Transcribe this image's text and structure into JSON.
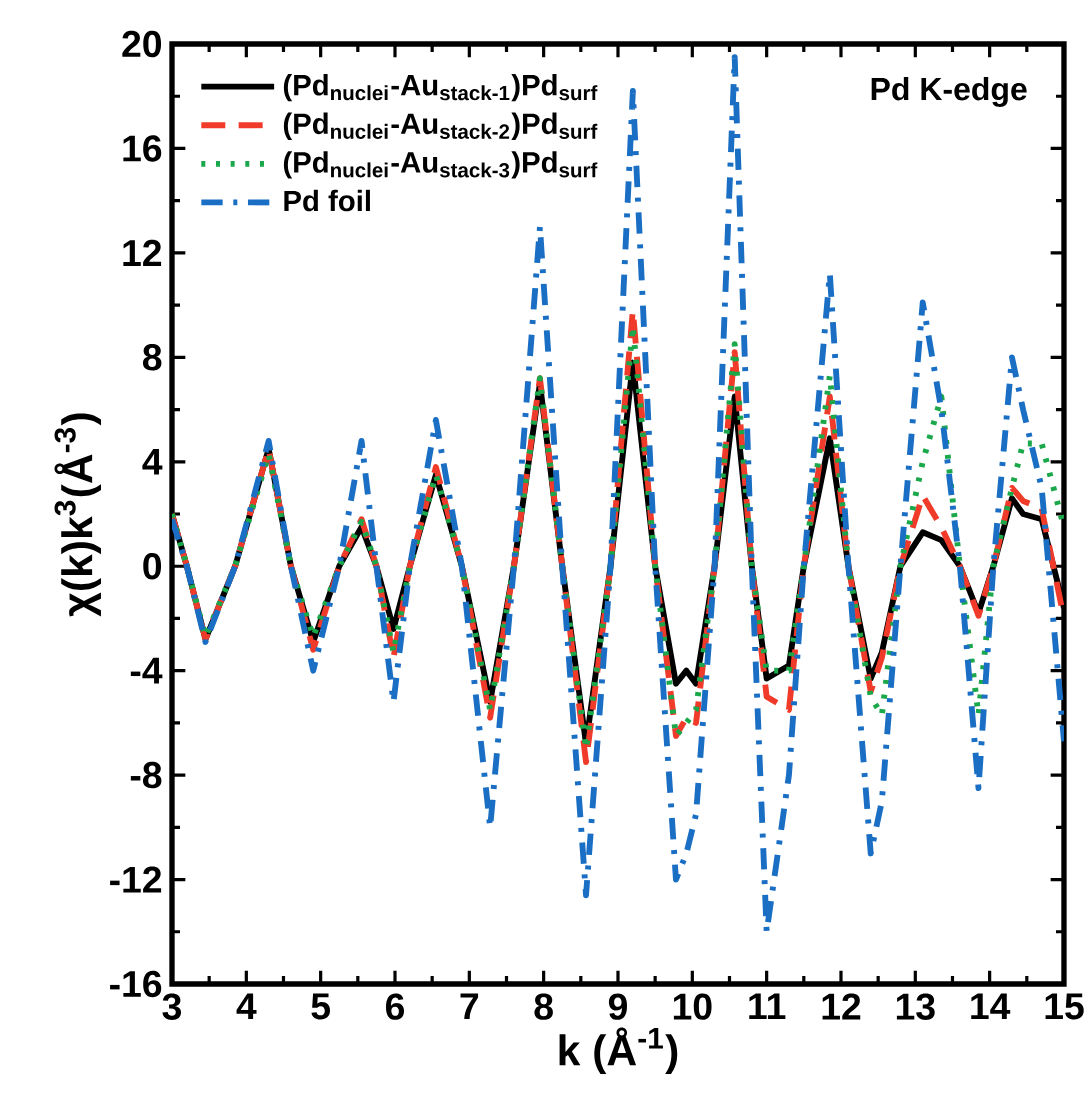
{
  "chart_data": {
    "type": "line",
    "xlabel": "k (Å$^{-1}$)",
    "ylabel": "χ(k)k$^{3}$(Å$^{-3}$)",
    "annotations": [
      "Pd K-edge"
    ],
    "xlim": [
      3,
      15
    ],
    "ylim": [
      -16,
      20
    ],
    "xticks": [
      3,
      4,
      5,
      6,
      7,
      8,
      9,
      10,
      11,
      12,
      13,
      14,
      15
    ],
    "yticks": [
      -16,
      -12,
      -8,
      -4,
      0,
      4,
      8,
      12,
      16,
      20
    ],
    "grid": false,
    "legend": "top left",
    "x": [
      3,
      3.2,
      3.45,
      3.85,
      4.3,
      4.6,
      4.9,
      5.25,
      5.55,
      5.75,
      5.98,
      6.2,
      6.55,
      6.9,
      7.28,
      7.6,
      7.95,
      8.25,
      8.57,
      8.9,
      9.2,
      9.5,
      9.78,
      9.92,
      10.05,
      10.3,
      10.57,
      10.8,
      11.0,
      11.3,
      11.5,
      11.85,
      12.1,
      12.4,
      12.55,
      12.8,
      13.1,
      13.35,
      13.6,
      13.85,
      14.05,
      14.3,
      14.45,
      14.7,
      15
    ],
    "series": [
      {
        "name": "(Pd$_{nuclei}$-Au$_{stack-1}$)Pd$_{surf}$",
        "color": "#000000",
        "line_style": "solid",
        "values": [
          2,
          0,
          -2.8,
          0,
          4.5,
          0,
          -2.9,
          0,
          1.5,
          0,
          -2.4,
          0,
          3.5,
          0,
          -5.2,
          0,
          7.0,
          0,
          -6.8,
          0,
          7.8,
          0,
          -4.5,
          -4.0,
          -4.5,
          0,
          6.5,
          0,
          -4.3,
          -3.8,
          0,
          4.9,
          0,
          -4.3,
          -3.3,
          0,
          1.3,
          1.0,
          0,
          -1.8,
          0,
          2.6,
          2.0,
          1.8,
          -1.6
        ]
      },
      {
        "name": "(Pd$_{nuclei}$-Au$_{stack-2}$)Pd$_{surf}$",
        "color": "#f03a2a",
        "line_style": "dashed",
        "values": [
          2,
          0,
          -2.8,
          0,
          4.5,
          0,
          -3.2,
          0,
          1.8,
          0,
          -3.5,
          0,
          3.8,
          0,
          -5.8,
          0,
          7.2,
          0,
          -7.5,
          0,
          9.8,
          0,
          -6.5,
          -5.8,
          -6.0,
          0,
          8.2,
          0,
          -5.0,
          -5.5,
          0,
          6.5,
          0,
          -4.8,
          -3.5,
          0,
          2.7,
          1.5,
          0,
          -1.9,
          0,
          3.0,
          2.5,
          2.2,
          -2.0
        ]
      },
      {
        "name": "(Pd$_{nuclei}$-Au$_{stack-3}$)Pd$_{surf}$",
        "color": "#1aa84a",
        "line_style": "dotted",
        "values": [
          2,
          0,
          -2.7,
          0,
          4.3,
          0,
          -2.7,
          0,
          1.7,
          0,
          -3.3,
          0,
          3.5,
          0,
          -5.5,
          0,
          7.2,
          0,
          -7.0,
          0,
          9.2,
          0,
          -6.5,
          -6.0,
          -5.5,
          0,
          8.5,
          0,
          -4.0,
          -4.0,
          0,
          7.3,
          0,
          -5.0,
          -5.7,
          0,
          4.0,
          6.5,
          0,
          -5.7,
          0,
          3.0,
          4.7,
          4.7,
          1.5
        ]
      },
      {
        "name": "Pd foil",
        "color": "#1a6fc4",
        "line_style": "dashdot",
        "values": [
          1.8,
          0,
          -2.9,
          0,
          4.8,
          0,
          -4.0,
          0,
          4.8,
          0,
          -5.2,
          0,
          5.6,
          0,
          -10,
          0,
          13,
          0,
          -12.6,
          0,
          18.2,
          0,
          -12,
          -11,
          -9.5,
          0,
          19.5,
          0,
          -14,
          -8,
          0,
          11.2,
          0,
          -11,
          -9,
          0,
          10.1,
          6,
          0,
          -8.5,
          0,
          8.0,
          6,
          3,
          -6.7
        ]
      }
    ]
  }
}
